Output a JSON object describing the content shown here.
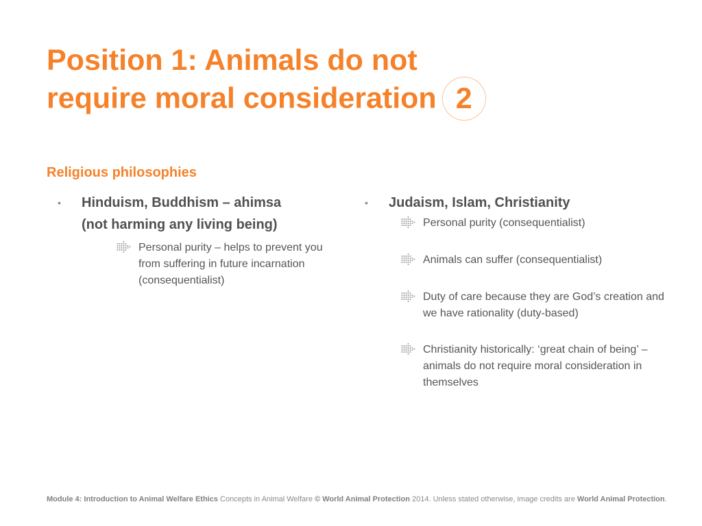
{
  "title": {
    "line1": "Position 1: Animals do not",
    "line2": "require moral consideration",
    "slide_number": "2"
  },
  "section_heading": "Religious philosophies",
  "left_column": {
    "bullet_line1": "Hinduism, Buddhism – ahimsa",
    "bullet_line2": "(not harming any living being)",
    "sub_items": [
      "Personal purity – helps to prevent you from suffering in future incarnation (consequentialist)"
    ]
  },
  "right_column": {
    "bullet": "Judaism, Islam, Christianity",
    "sub_items": [
      "Personal purity (consequentialist)",
      "Animals can suffer (consequentialist)",
      "Duty of care because they are God’s creation and we have rationality (duty-based)",
      "Christianity historically: ‘great chain of being’ – animals do not require moral consideration in themselves"
    ]
  },
  "footer": {
    "module": "Module 4: Introduction to Animal Welfare Ethics",
    "course": "Concepts in Animal Welfare",
    "copyright_symbol": "©",
    "org": "World Animal Protection",
    "notice": "2014. Unless stated otherwise, image credits are",
    "credit_org": "World Animal Protection",
    "period": "."
  },
  "icons": {
    "bullet": "bullet-dot",
    "sub_bullet": "dotted-arrow-icon"
  },
  "colors": {
    "accent": "#f5822a",
    "text": "#505050",
    "muted": "#8a8a8a"
  }
}
